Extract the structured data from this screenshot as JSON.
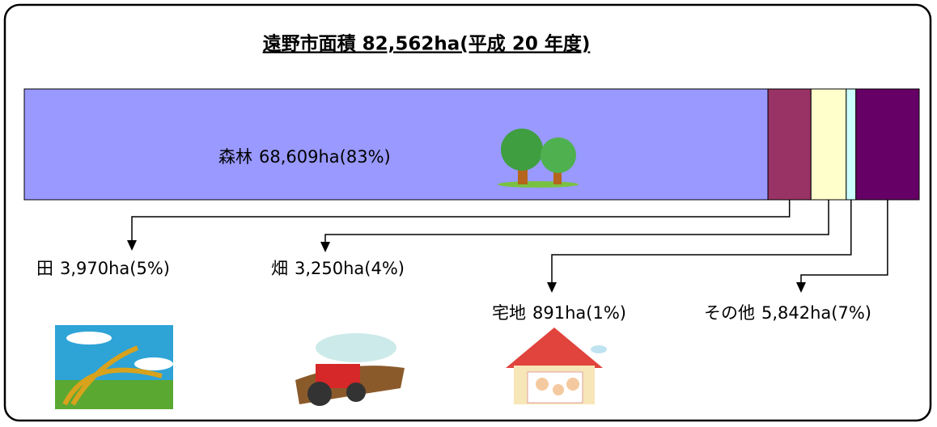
{
  "chart_data": {
    "type": "stacked-bar",
    "title": "遠野市面積 82,562ha(平成 20 年度)",
    "categories": [
      "森林",
      "田",
      "畑",
      "宅地",
      "その他"
    ],
    "values": [
      68609,
      3970,
      3250,
      891,
      5842
    ],
    "value_labels": [
      "68,609ha",
      "3,970ha",
      "3,250ha",
      "891ha",
      "5,842ha"
    ],
    "share_labels": [
      "(83%)",
      "(5%)",
      "(4%)",
      "(1%)",
      "(7%)"
    ],
    "colors": [
      "#9999ff",
      "#993366",
      "#ffffcc",
      "#ccffff",
      "#660066"
    ]
  }
}
